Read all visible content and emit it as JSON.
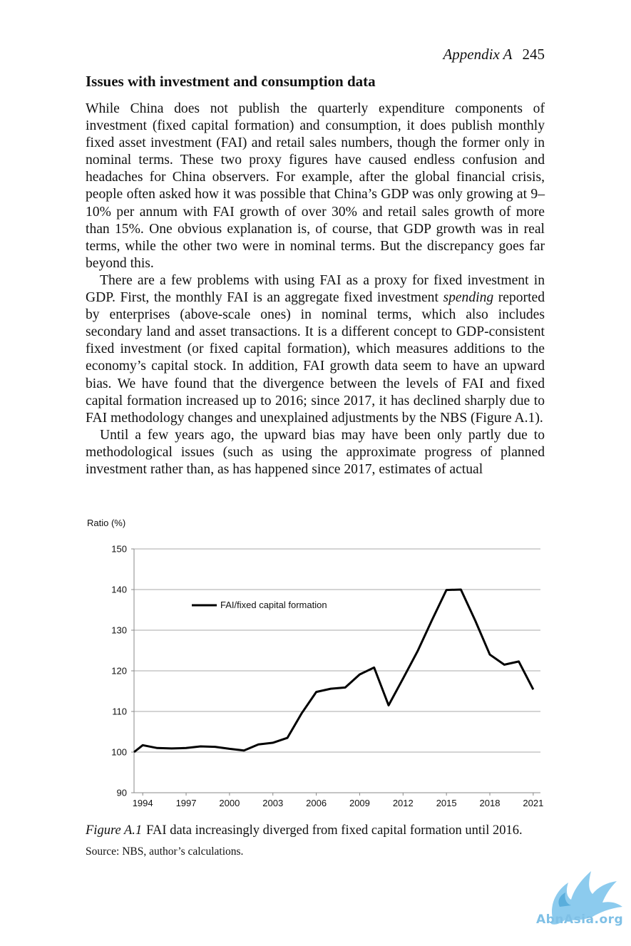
{
  "header": {
    "running_title": "Appendix A",
    "page_number": "245"
  },
  "section": {
    "heading": "Issues with investment and consumption data"
  },
  "paragraphs": {
    "p1": "While China does not publish the quarterly expenditure components of investment (fixed capital formation) and consumption, it does publish monthly fixed asset investment (FAI) and retail sales numbers, though the former only in nominal terms. These two proxy figures have caused endless confusion and headaches for China observers. For example, after the global financial crisis, people often asked how it was possible that China’s GDP was only growing at 9–10% per annum with FAI growth of over 30% and retail sales growth of more than 15%. One obvious explanation is, of course, that GDP growth was in real terms, while the other two were in nominal terms. But the discrepancy goes far beyond this.",
    "p2_before": "There are a few problems with using FAI as a proxy for fixed investment in GDP. First, the monthly FAI is an aggregate fixed investment ",
    "p2_emphasis": "spending",
    "p2_after": " reported by enterprises (above-scale ones) in nominal terms, which also includes secondary land and asset transactions. It is a different concept to GDP-consistent fixed investment (or fixed capital formation), which measures additions to the economy’s capital stock. In addition, FAI growth data seem to have an upward bias. We have found that the divergence between the levels of FAI and fixed capital formation increased up to 2016; since 2017, it has declined sharply due to FAI methodology changes and unexplained adjustments by the NBS (Figure A.1).",
    "p3": "Until a few years ago, the upward bias may have been only partly due to methodological issues (such as using the approximate progress of planned investment rather than, as has happened since 2017, estimates of actual"
  },
  "figure": {
    "label": "Figure A.1",
    "caption": "FAI data increasingly diverged from fixed capital formation until 2016.",
    "source": "Source: NBS, author’s calculations."
  },
  "chart_data": {
    "type": "line",
    "ylabel": "Ratio (%)",
    "xlabel": "",
    "title": "",
    "ylim": [
      90,
      150
    ],
    "yticks": [
      90,
      100,
      110,
      120,
      130,
      140,
      150
    ],
    "xlim": [
      1993.4,
      2021.5
    ],
    "xticks": [
      1994,
      1997,
      2000,
      2003,
      2006,
      2009,
      2012,
      2015,
      2018,
      2021
    ],
    "grid": "horizontal",
    "legend_position": "top-left",
    "line_color": "#000000",
    "series": [
      {
        "name": "FAI/fixed capital formation",
        "x": [
          1993,
          1994,
          1995,
          1996,
          1997,
          1998,
          1999,
          2000,
          2001,
          2002,
          2003,
          2004,
          2005,
          2006,
          2007,
          2008,
          2009,
          2010,
          2011,
          2012,
          2013,
          2014,
          2015,
          2016,
          2017,
          2018,
          2019,
          2020,
          2021
        ],
        "values": [
          100.0,
          101.7,
          101.0,
          100.9,
          101.0,
          101.4,
          101.3,
          100.8,
          100.4,
          101.9,
          102.3,
          103.5,
          109.6,
          114.8,
          115.6,
          115.9,
          119.1,
          120.8,
          111.5,
          118.1,
          124.8,
          132.5,
          139.9,
          140.0,
          132.3,
          124.0,
          121.5,
          122.3,
          115.4
        ]
      }
    ]
  },
  "watermark": {
    "text": "AbnAsia.org"
  }
}
